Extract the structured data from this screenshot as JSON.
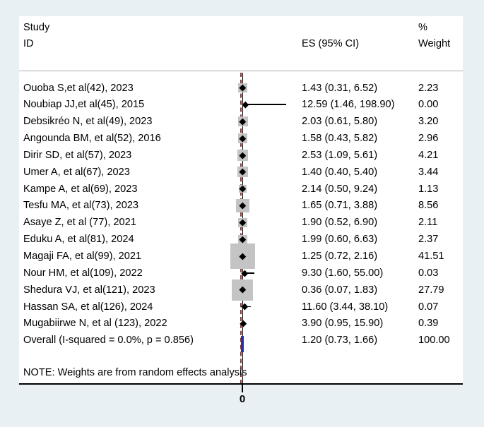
{
  "header": {
    "study_line1": "Study",
    "study_line2": "ID",
    "es_col": "ES (95% CI)",
    "weight_line1": "%",
    "weight_line2": "Weight"
  },
  "note": "NOTE: Weights are from random effects analysis",
  "axis": {
    "tick_label": "0"
  },
  "colors": {
    "background": "#e8f0f3",
    "plot_background": "#ffffff",
    "square": "#c4c4c4",
    "overall_diamond": "#2d2da8",
    "overall_dashed_line": "#7f3636",
    "axis": "#000000"
  },
  "chart_data": {
    "type": "forest",
    "title": "",
    "xlabel": "",
    "null_value": 1,
    "legend": "none",
    "rows": [
      {
        "study": "Ouoba S,et al(42), 2023",
        "es": 1.43,
        "lo": 0.31,
        "hi": 6.52,
        "es_text": "1.43 (0.31, 6.52)",
        "weight": 2.23,
        "weight_text": "2.23"
      },
      {
        "study": "Noubiap JJ,et al(45), 2015",
        "es": 12.59,
        "lo": 1.46,
        "hi": 198.9,
        "es_text": "12.59 (1.46, 198.90)",
        "weight": 0.0,
        "weight_text": "0.00"
      },
      {
        "study": "Debsikréo N, et al(49), 2023",
        "es": 2.03,
        "lo": 0.61,
        "hi": 5.8,
        "es_text": "2.03 (0.61, 5.80)",
        "weight": 3.2,
        "weight_text": "3.20"
      },
      {
        "study": "Angounda BM, et al(52), 2016",
        "es": 1.58,
        "lo": 0.43,
        "hi": 5.82,
        "es_text": "1.58 (0.43, 5.82)",
        "weight": 2.96,
        "weight_text": "2.96"
      },
      {
        "study": "Dirir SD, et al(57), 2023",
        "es": 2.53,
        "lo": 1.09,
        "hi": 5.61,
        "es_text": "2.53 (1.09, 5.61)",
        "weight": 4.21,
        "weight_text": "4.21"
      },
      {
        "study": "Umer A, et al(67), 2023",
        "es": 1.4,
        "lo": 0.4,
        "hi": 5.4,
        "es_text": "1.40 (0.40, 5.40)",
        "weight": 3.44,
        "weight_text": "3.44"
      },
      {
        "study": "Kampe A, et al(69), 2023",
        "es": 2.14,
        "lo": 0.5,
        "hi": 9.24,
        "es_text": "2.14 (0.50, 9.24)",
        "weight": 1.13,
        "weight_text": "1.13"
      },
      {
        "study": "Tesfu MA, et al(73), 2023",
        "es": 1.65,
        "lo": 0.71,
        "hi": 3.88,
        "es_text": "1.65 (0.71, 3.88)",
        "weight": 8.56,
        "weight_text": "8.56"
      },
      {
        "study": "Asaye Z, et al (77), 2021",
        "es": 1.9,
        "lo": 0.52,
        "hi": 6.9,
        "es_text": "1.90 (0.52, 6.90)",
        "weight": 2.11,
        "weight_text": "2.11"
      },
      {
        "study": "Eduku A, et al(81), 2024",
        "es": 1.99,
        "lo": 0.6,
        "hi": 6.63,
        "es_text": "1.99 (0.60, 6.63)",
        "weight": 2.37,
        "weight_text": "2.37"
      },
      {
        "study": "Magaji FA, et al(99), 2021",
        "es": 1.25,
        "lo": 0.72,
        "hi": 2.16,
        "es_text": "1.25 (0.72, 2.16)",
        "weight": 41.51,
        "weight_text": "41.51"
      },
      {
        "study": "Nour HM, et al(109), 2022",
        "es": 9.3,
        "lo": 1.6,
        "hi": 55.0,
        "es_text": "9.30 (1.60, 55.00)",
        "weight": 0.03,
        "weight_text": "0.03"
      },
      {
        "study": "Shedura VJ, et al(121), 2023",
        "es": 0.36,
        "lo": 0.07,
        "hi": 1.83,
        "es_text": "0.36 (0.07, 1.83)",
        "weight": 27.79,
        "weight_text": "27.79"
      },
      {
        "study": "Hassan SA, et al(126), 2024",
        "es": 11.6,
        "lo": 3.44,
        "hi": 38.1,
        "es_text": "11.60 (3.44, 38.10)",
        "weight": 0.07,
        "weight_text": "0.07"
      },
      {
        "study": "Mugabiirwe N, et al (123), 2022",
        "es": 3.9,
        "lo": 0.95,
        "hi": 15.9,
        "es_text": "3.90 (0.95, 15.90)",
        "weight": 0.39,
        "weight_text": "0.39"
      },
      {
        "study": "Overall  (I-squared = 0.0%, p = 0.856)",
        "es": 1.2,
        "lo": 0.73,
        "hi": 1.66,
        "es_text": "1.20 (0.73, 1.66)",
        "weight": 100.0,
        "weight_text": "100.00",
        "overall": true
      }
    ]
  }
}
